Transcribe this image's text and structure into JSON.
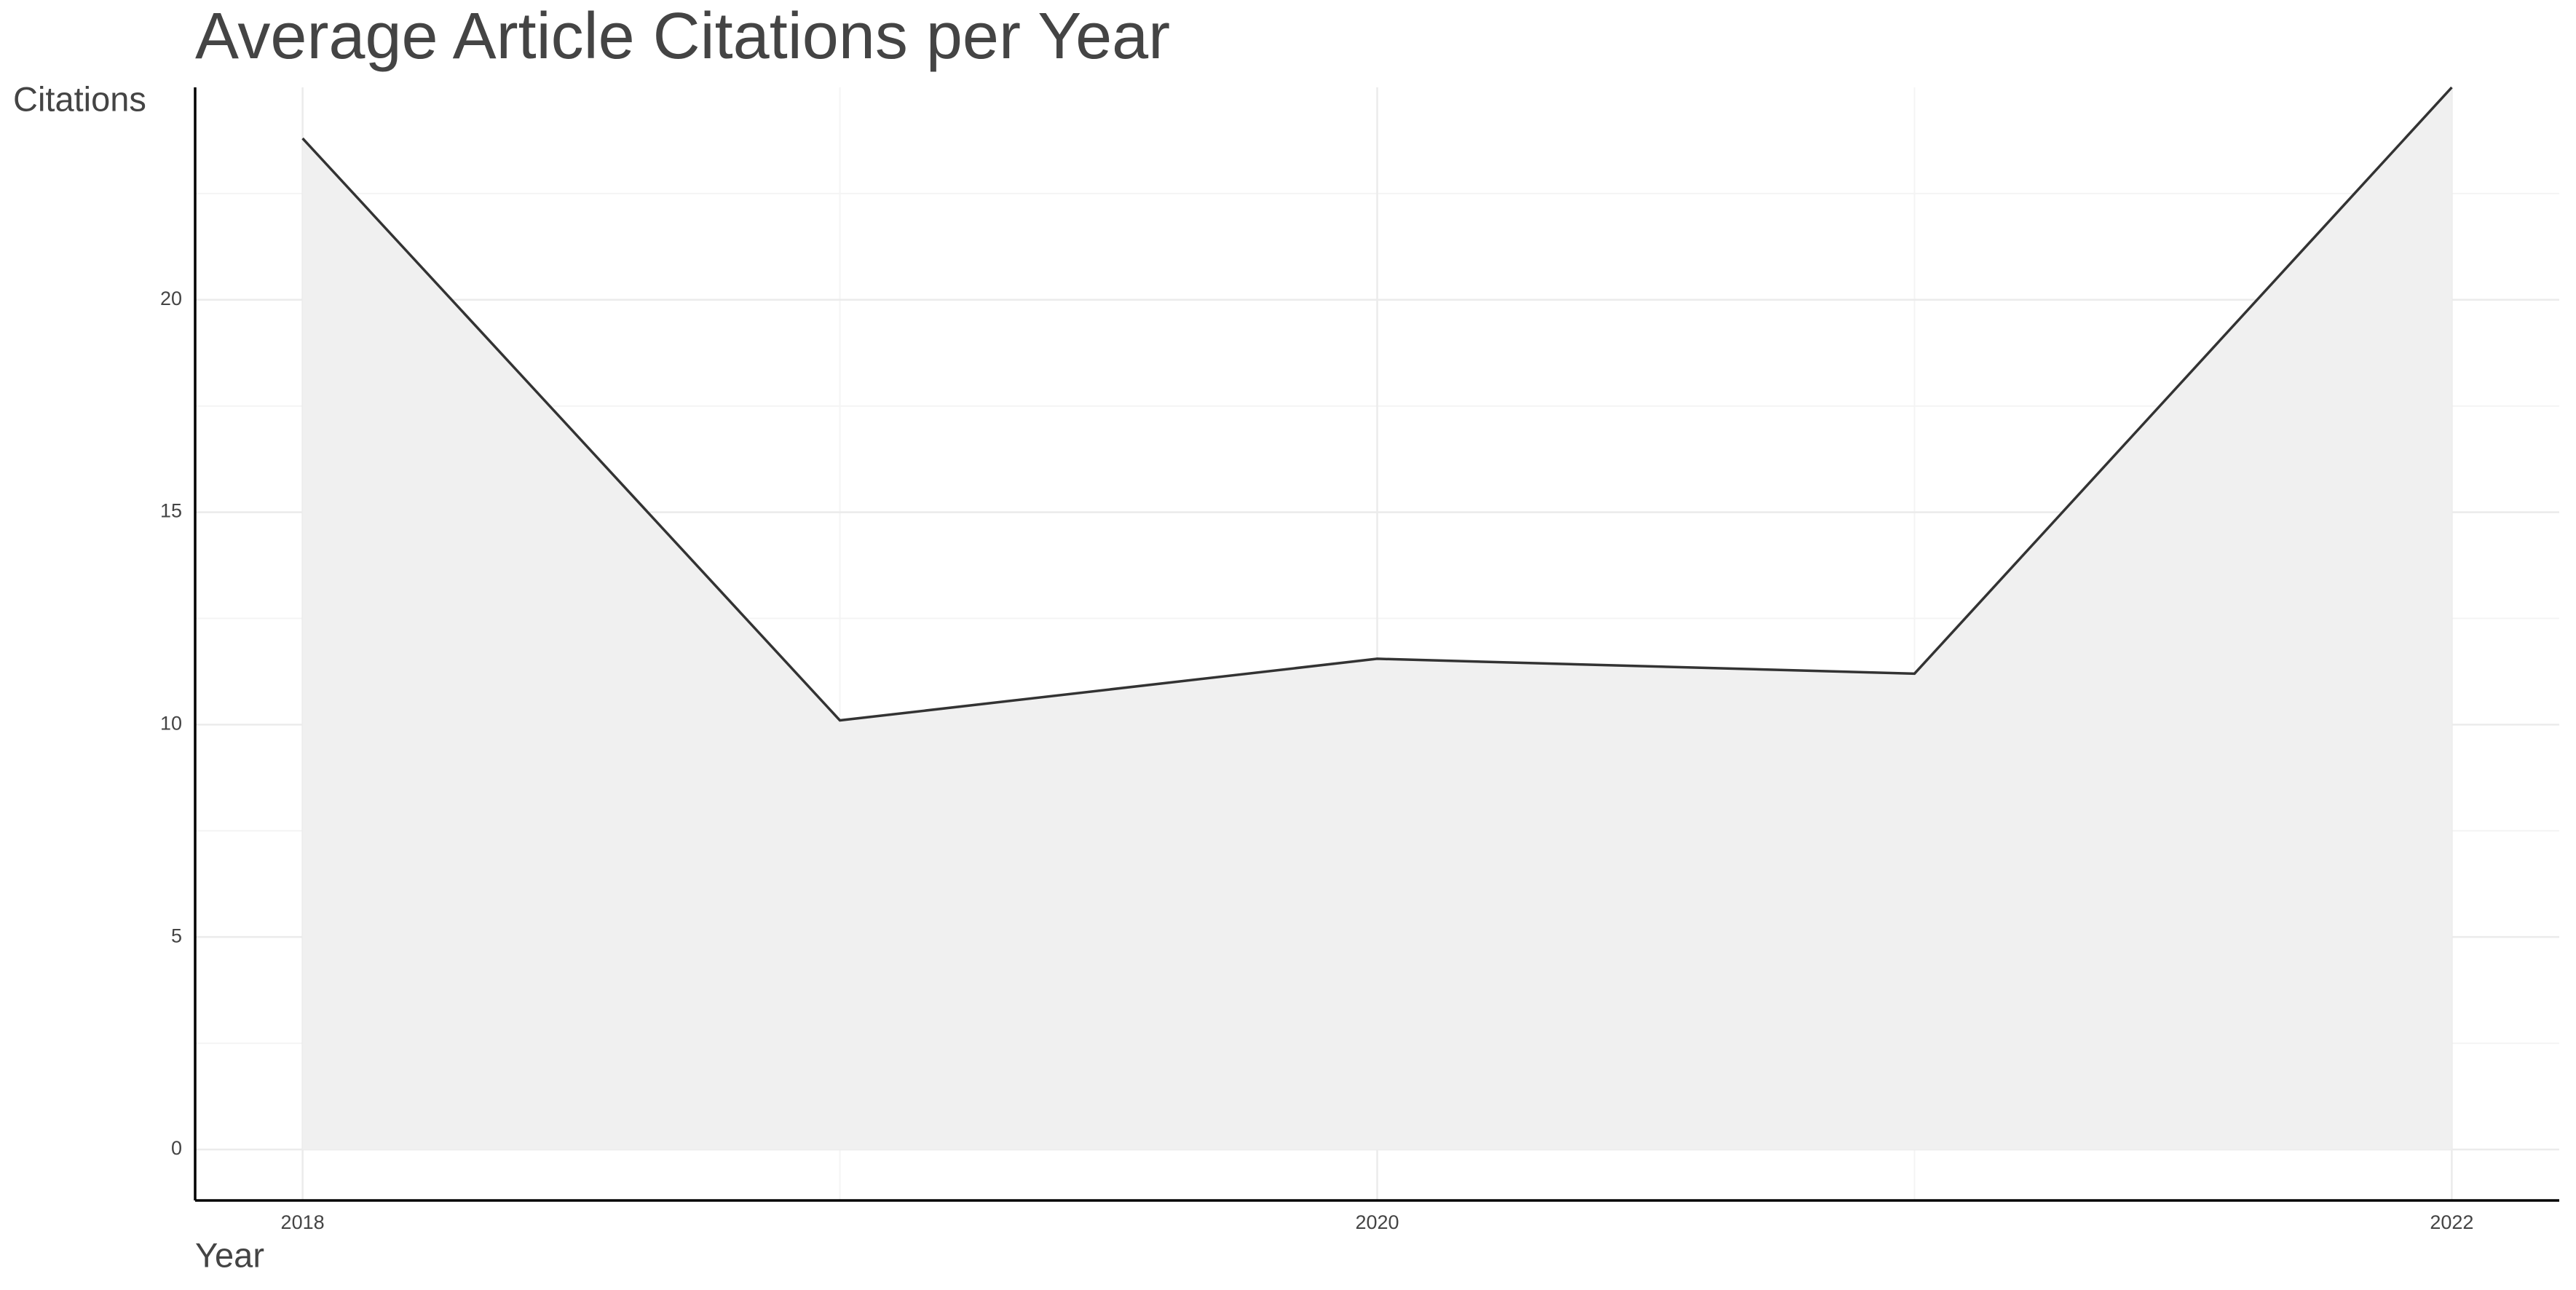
{
  "chart_data": {
    "type": "area",
    "title": "Average Article Citations per Year",
    "y_label": "Citations",
    "x_label": "Year",
    "x": [
      2018,
      2019,
      2020,
      2021,
      2022
    ],
    "values": [
      23.8,
      10.1,
      11.55,
      11.2,
      25.0
    ],
    "line_color": "#333333",
    "fill_color": "#f0f0f0",
    "xlim": [
      2017.8,
      2022.2
    ],
    "xticks": [
      2018,
      2020,
      2022
    ],
    "x_minor_grid": [
      2019,
      2021
    ],
    "ylim": [
      -1.2,
      25
    ],
    "yticks": [
      0,
      5,
      10,
      15,
      20
    ],
    "y_minor_grid": [
      2.5,
      7.5,
      12.5,
      17.5,
      22.5
    ],
    "grid": true
  }
}
